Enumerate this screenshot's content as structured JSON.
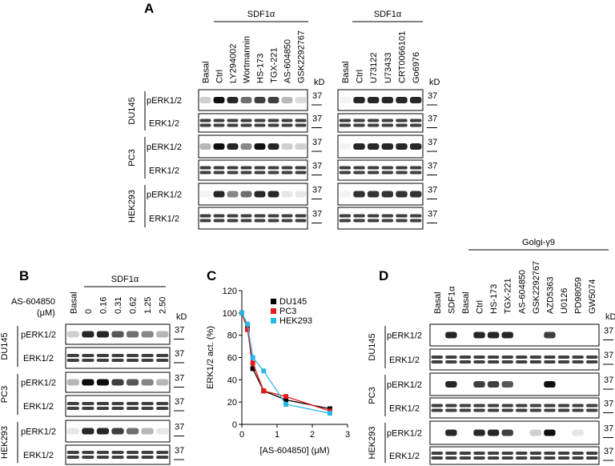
{
  "common": {
    "cell_lines": [
      "DU145",
      "PC3",
      "HEK293"
    ],
    "proteins": [
      "pERK1/2",
      "ERK1/2"
    ],
    "kd": "kD",
    "marker": "37"
  },
  "panel_a": {
    "label": "A",
    "left": {
      "treatment": "SDF1α",
      "lanes": [
        "Basal",
        "Ctrl",
        "LY294002",
        "Wortmannin",
        "HS-173",
        "TGX-221",
        "AS-604850",
        "GSK2292767"
      ]
    },
    "right": {
      "treatment": "SDF1α",
      "lanes": [
        "Basal",
        "Ctrl",
        "U73122",
        "U73433",
        "CRT0066101",
        "Go6976"
      ]
    }
  },
  "panel_b": {
    "label": "B",
    "treatment": "SDF1α",
    "inhibitor": "AS-604850",
    "unit": "(μM)",
    "lanes": [
      "Basal",
      "0",
      "0.16",
      "0.31",
      "0.62",
      "1.25",
      "2.50"
    ]
  },
  "panel_c": {
    "label": "C"
  },
  "chart_data": {
    "type": "line",
    "ylabel": "ERK1/2 act. (%)",
    "xlabel": "[AS-604850] (μM)",
    "x": [
      0,
      0.16,
      0.31,
      0.62,
      1.25,
      2.5
    ],
    "series": [
      {
        "name": "DU145",
        "color": "#000000",
        "values": [
          100,
          88,
          50,
          30,
          22,
          14
        ]
      },
      {
        "name": "PC3",
        "color": "#e8191b",
        "values": [
          100,
          85,
          55,
          30,
          25,
          12
        ]
      },
      {
        "name": "HEK293",
        "color": "#29b5e8",
        "values": [
          100,
          90,
          60,
          48,
          18,
          10
        ]
      }
    ],
    "xlim": [
      0,
      3
    ],
    "xticks": [
      0,
      1,
      2,
      3
    ],
    "ylim": [
      0,
      120
    ],
    "yticks": [
      0,
      20,
      40,
      60,
      80,
      100,
      120
    ],
    "legend": "upper right"
  },
  "panel_d": {
    "label": "D",
    "treatment": "Golgi-γ9",
    "lanes": [
      "Basal",
      "SDF1α",
      "Basal",
      "Ctrl",
      "HS-173",
      "TGX-221",
      "AS-604850",
      "GSK2292767",
      "AZD5363",
      "U0126",
      "PD98059",
      "GW5074"
    ]
  }
}
